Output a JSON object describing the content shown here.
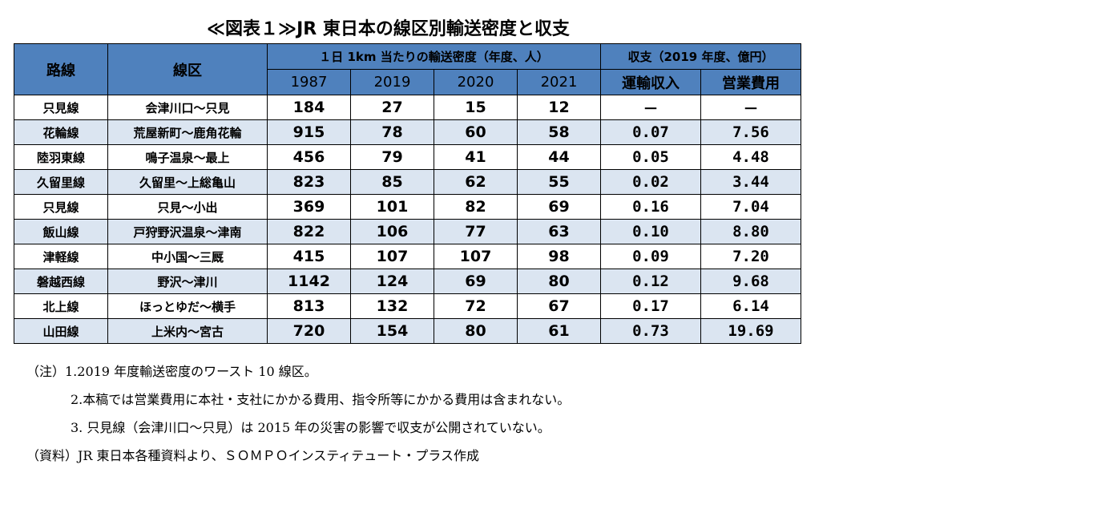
{
  "title": "≪図表１≫JR 東日本の線区別輸送密度と収支",
  "table": {
    "headers": {
      "line": "路線",
      "section": "線区",
      "density_group": "１日 1km 当たりの輸送密度（年度、人）",
      "finance_group": "収支（2019 年度、億円）",
      "years": [
        "1987",
        "2019",
        "2020",
        "2021"
      ],
      "revenue": "運輸収入",
      "cost": "営業費用"
    },
    "rows": [
      {
        "line": "只見線",
        "section": "会津川口～只見",
        "d1987": "184",
        "d2019": "27",
        "d2020": "15",
        "d2021": "12",
        "revenue": "－",
        "cost": "－"
      },
      {
        "line": "花輪線",
        "section": "荒屋新町～鹿角花輪",
        "d1987": "915",
        "d2019": "78",
        "d2020": "60",
        "d2021": "58",
        "revenue": "0.07",
        "cost": "7.56"
      },
      {
        "line": "陸羽東線",
        "section": "鳴子温泉～最上",
        "d1987": "456",
        "d2019": "79",
        "d2020": "41",
        "d2021": "44",
        "revenue": "0.05",
        "cost": "4.48"
      },
      {
        "line": "久留里線",
        "section": "久留里～上総亀山",
        "d1987": "823",
        "d2019": "85",
        "d2020": "62",
        "d2021": "55",
        "revenue": "0.02",
        "cost": "3.44"
      },
      {
        "line": "只見線",
        "section": "只見～小出",
        "d1987": "369",
        "d2019": "101",
        "d2020": "82",
        "d2021": "69",
        "revenue": "0.16",
        "cost": "7.04"
      },
      {
        "line": "飯山線",
        "section": "戸狩野沢温泉～津南",
        "d1987": "822",
        "d2019": "106",
        "d2020": "77",
        "d2021": "63",
        "revenue": "0.10",
        "cost": "8.80"
      },
      {
        "line": "津軽線",
        "section": "中小国～三厩",
        "d1987": "415",
        "d2019": "107",
        "d2020": "107",
        "d2021": "98",
        "revenue": "0.09",
        "cost": "7.20"
      },
      {
        "line": "磐越西線",
        "section": "野沢～津川",
        "d1987": "1142",
        "d2019": "124",
        "d2020": "69",
        "d2021": "80",
        "revenue": "0.12",
        "cost": "9.68"
      },
      {
        "line": "北上線",
        "section": "ほっとゆだ～横手",
        "d1987": "813",
        "d2019": "132",
        "d2020": "72",
        "d2021": "67",
        "revenue": "0.17",
        "cost": "6.14"
      },
      {
        "line": "山田線",
        "section": "上米内～宮古",
        "d1987": "720",
        "d2019": "154",
        "d2020": "80",
        "d2021": "61",
        "revenue": "0.73",
        "cost": "19.69"
      }
    ]
  },
  "notes": [
    "（注）1.2019 年度輸送密度のワースト 10 線区。",
    "2.本稿では営業費用に本社・支社にかかる費用、指令所等にかかる費用は含まれない。",
    "3. 只見線（会津川口～只見）は 2015 年の災害の影響で収支が公開されていない。"
  ],
  "source": "（資料）JR 東日本各種資料より、ＳＯＭＰＯインスティテュート・プラス作成"
}
